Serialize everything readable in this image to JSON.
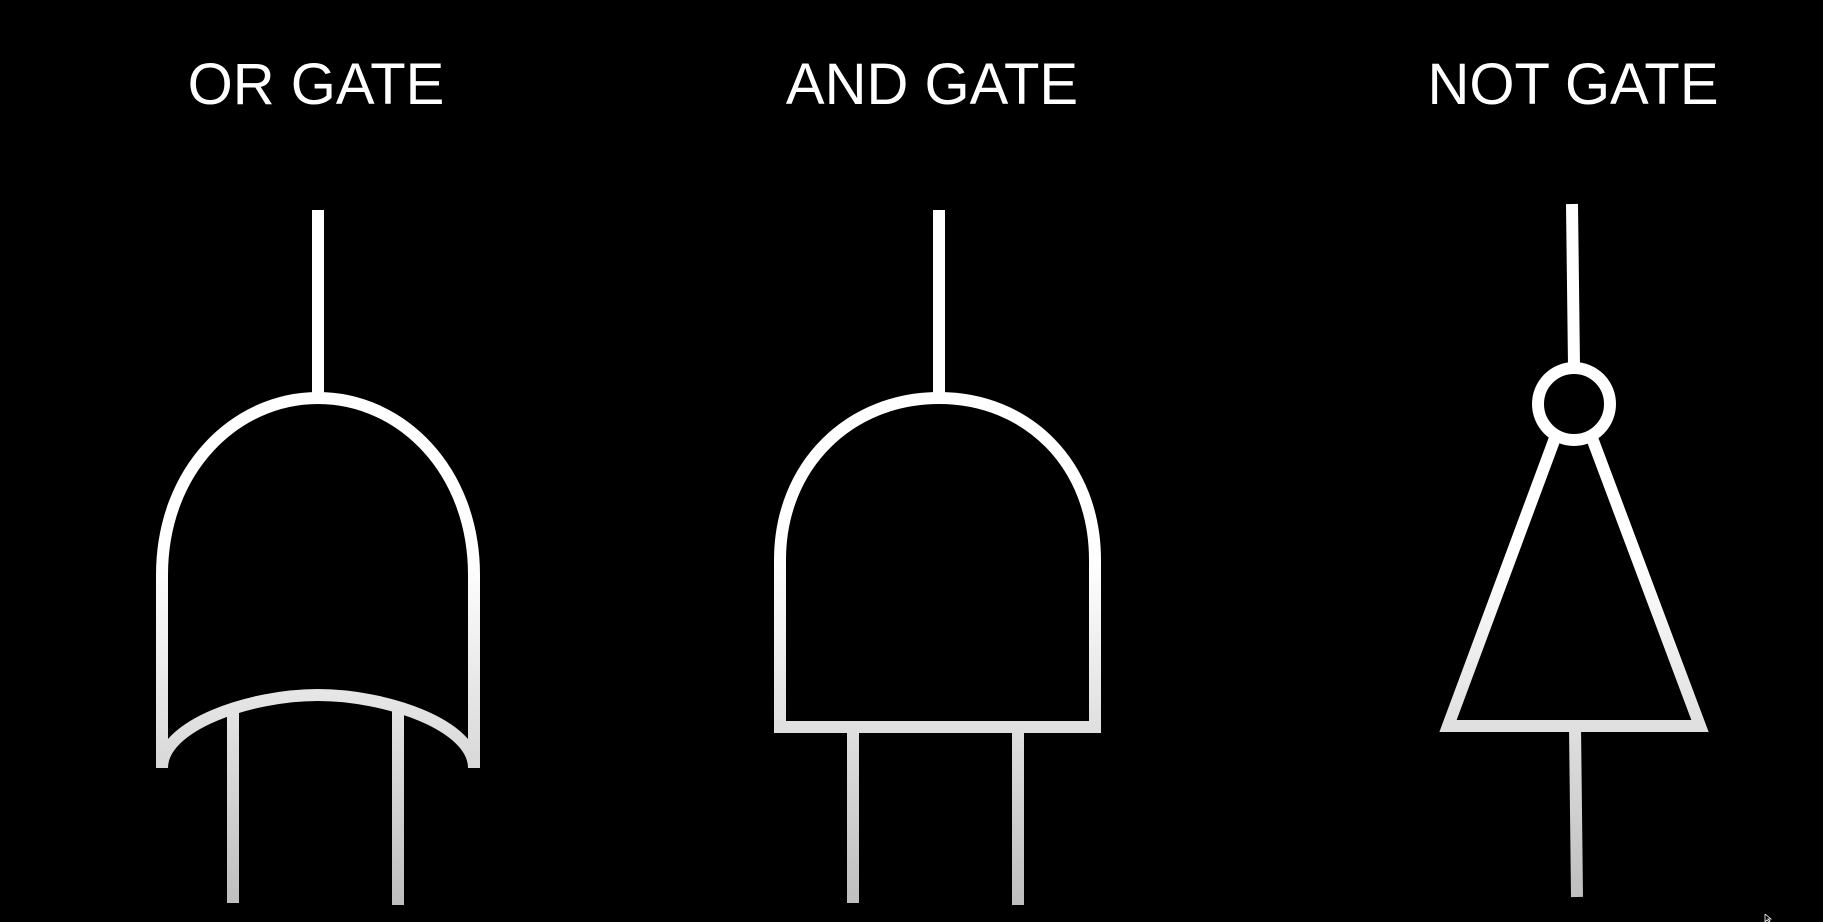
{
  "labels": {
    "or": "OR GATE",
    "and": "AND GATE",
    "not": "NOT GATE"
  },
  "colors": {
    "background": "#000000",
    "stroke": "#ffffff",
    "stroke_fade": "#bdbdbd"
  }
}
